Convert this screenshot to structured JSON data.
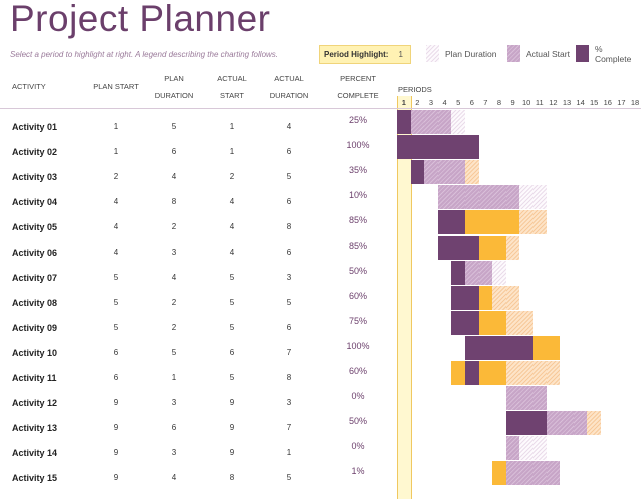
{
  "title": "Project Planner",
  "subtitle": "Select a period to highlight at right.  A legend describing the charting follows.",
  "period_highlight": {
    "label": "Period Highlight:",
    "value": "1"
  },
  "legend": [
    {
      "label": "Plan Duration",
      "style": "light"
    },
    {
      "label": "Actual Start",
      "style": "hatch"
    },
    {
      "label": "% Complete",
      "style": "dark"
    }
  ],
  "colors": {
    "accent": "#6b3f6b",
    "complete": "#6f4270",
    "beyond_plan": "#fbb938",
    "highlight": "#fff8d0"
  },
  "headers": {
    "activity": "ACTIVITY",
    "plan_start": "PLAN START",
    "plan_duration": "PLAN DURATION",
    "actual_start": "ACTUAL START",
    "actual_duration": "ACTUAL DURATION",
    "percent_complete": "PERCENT COMPLETE",
    "periods": "PERIODS"
  },
  "periods": [
    "1",
    "2",
    "3",
    "4",
    "5",
    "6",
    "7",
    "8",
    "9",
    "10",
    "11",
    "12",
    "13",
    "14",
    "15",
    "16",
    "17",
    "18"
  ],
  "activities": [
    {
      "name": "Activity 01",
      "plan_start": 1,
      "plan_duration": 5,
      "actual_start": 1,
      "actual_duration": 4,
      "percent": "25%"
    },
    {
      "name": "Activity 02",
      "plan_start": 1,
      "plan_duration": 6,
      "actual_start": 1,
      "actual_duration": 6,
      "percent": "100%"
    },
    {
      "name": "Activity 03",
      "plan_start": 2,
      "plan_duration": 4,
      "actual_start": 2,
      "actual_duration": 5,
      "percent": "35%"
    },
    {
      "name": "Activity 04",
      "plan_start": 4,
      "plan_duration": 8,
      "actual_start": 4,
      "actual_duration": 6,
      "percent": "10%"
    },
    {
      "name": "Activity 05",
      "plan_start": 4,
      "plan_duration": 2,
      "actual_start": 4,
      "actual_duration": 8,
      "percent": "85%"
    },
    {
      "name": "Activity 06",
      "plan_start": 4,
      "plan_duration": 3,
      "actual_start": 4,
      "actual_duration": 6,
      "percent": "85%"
    },
    {
      "name": "Activity 07",
      "plan_start": 5,
      "plan_duration": 4,
      "actual_start": 5,
      "actual_duration": 3,
      "percent": "50%"
    },
    {
      "name": "Activity 08",
      "plan_start": 5,
      "plan_duration": 2,
      "actual_start": 5,
      "actual_duration": 5,
      "percent": "60%"
    },
    {
      "name": "Activity 09",
      "plan_start": 5,
      "plan_duration": 2,
      "actual_start": 5,
      "actual_duration": 6,
      "percent": "75%"
    },
    {
      "name": "Activity 10",
      "plan_start": 6,
      "plan_duration": 5,
      "actual_start": 6,
      "actual_duration": 7,
      "percent": "100%"
    },
    {
      "name": "Activity 11",
      "plan_start": 6,
      "plan_duration": 1,
      "actual_start": 5,
      "actual_duration": 8,
      "percent": "60%"
    },
    {
      "name": "Activity 12",
      "plan_start": 9,
      "plan_duration": 3,
      "actual_start": 9,
      "actual_duration": 3,
      "percent": "0%"
    },
    {
      "name": "Activity 13",
      "plan_start": 9,
      "plan_duration": 6,
      "actual_start": 9,
      "actual_duration": 7,
      "percent": "50%"
    },
    {
      "name": "Activity 14",
      "plan_start": 9,
      "plan_duration": 3,
      "actual_start": 9,
      "actual_duration": 1,
      "percent": "0%"
    },
    {
      "name": "Activity 15",
      "plan_start": 9,
      "plan_duration": 4,
      "actual_start": 8,
      "actual_duration": 5,
      "percent": "1%"
    }
  ]
}
